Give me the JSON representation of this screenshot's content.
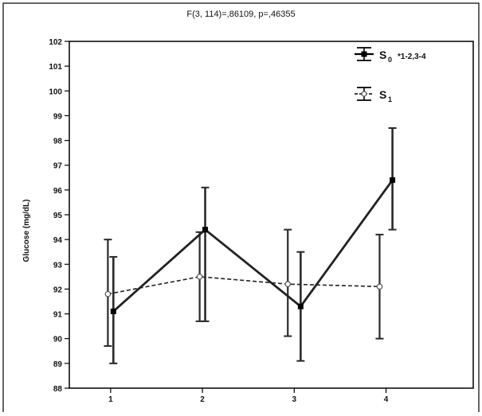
{
  "chart_data": {
    "type": "line",
    "title": "F(3, 114)=,86109, p=,46355",
    "xlabel": "",
    "ylabel": "Glucose (mg/dL)",
    "categories": [
      "1",
      "2",
      "3",
      "4"
    ],
    "xlim": [
      0.55,
      4.95
    ],
    "ylim": [
      88,
      102
    ],
    "yticks": [
      88,
      89,
      90,
      91,
      92,
      93,
      94,
      95,
      96,
      97,
      98,
      99,
      100,
      101,
      102
    ],
    "grid": false,
    "legend_position": "top-right",
    "series": [
      {
        "name": "S0",
        "legend_label_main": "S",
        "legend_label_sub": "0",
        "legend_note": "*1-2,3-4",
        "style": "solid",
        "marker": "filled-square",
        "color": "#222222",
        "x": [
          1.03,
          2.03,
          3.07,
          4.07
        ],
        "values": [
          91.1,
          94.4,
          91.3,
          96.4
        ],
        "lower": [
          89.0,
          90.7,
          89.1,
          94.4
        ],
        "upper": [
          93.3,
          96.1,
          93.5,
          98.5
        ]
      },
      {
        "name": "S1",
        "legend_label_main": "S",
        "legend_label_sub": "1",
        "legend_note": "",
        "style": "dashed",
        "marker": "open-circle",
        "color": "#222222",
        "x": [
          0.97,
          1.97,
          2.93,
          3.93
        ],
        "values": [
          91.8,
          92.5,
          92.2,
          92.1
        ],
        "lower": [
          89.7,
          90.7,
          90.1,
          90.0
        ],
        "upper": [
          94.0,
          94.3,
          94.4,
          94.2
        ]
      }
    ]
  }
}
